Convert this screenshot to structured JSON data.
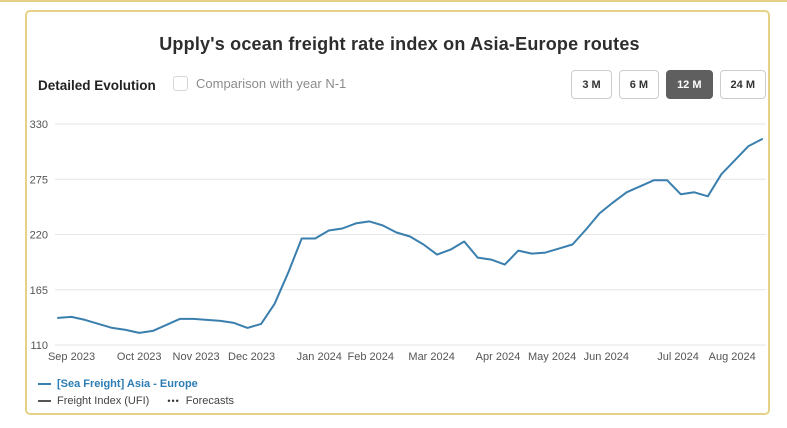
{
  "page": {
    "title": "Upply's ocean freight rate index on Asia-Europe routes"
  },
  "toolbar": {
    "section_label": "Detailed Evolution",
    "comparison_checkbox_label": "Comparison with year N-1",
    "comparison_checked": false,
    "range_buttons": [
      {
        "label": "3 M",
        "active": false
      },
      {
        "label": "6 M",
        "active": false
      },
      {
        "label": "12 M",
        "active": true
      },
      {
        "label": "24 M",
        "active": false
      }
    ]
  },
  "legend": {
    "series_label": "[Sea Freight] Asia - Europe",
    "index_label": "Freight Index (UFI)",
    "forecast_marker": "•••",
    "forecast_label": "Forecasts"
  },
  "colors": {
    "series_line": "#3a7fae",
    "legend_series_text": "#2d7cb3",
    "card_border": "#e5d287",
    "active_button_bg": "#5f5f5f",
    "grid_line": "#e6e6e6",
    "axis_text": "#555555"
  },
  "chart_data": {
    "type": "line",
    "title": "Upply's ocean freight rate index on Asia-Europe routes",
    "xlabel": "",
    "ylabel": "",
    "grid": "horizontal",
    "legend_position": "bottom-left",
    "ylim": [
      110,
      330
    ],
    "y_ticks": [
      110,
      165,
      220,
      275,
      330
    ],
    "x_tick_labels": [
      "Sep 2023",
      "Oct 2023",
      "Nov 2023",
      "Dec 2023",
      "Jan 2024",
      "Feb 2024",
      "Mar 2024",
      "Apr 2024",
      "May 2024",
      "Jun 2024",
      "Jul 2024",
      "Aug 2024"
    ],
    "x_tick_indices": [
      1,
      6,
      10.2,
      14.3,
      19.3,
      23.1,
      27.6,
      32.5,
      36.5,
      40.5,
      45.8,
      49.8
    ],
    "sampling": "weekly points, Sep 2023 – Aug 2024",
    "series": [
      {
        "name": "[Sea Freight] Asia - Europe",
        "values": [
          137,
          138,
          135,
          131,
          127,
          125,
          122,
          124,
          130,
          136,
          136,
          135,
          134,
          132,
          127,
          131,
          151,
          182,
          216,
          216,
          224,
          226,
          231,
          233,
          229,
          222,
          218,
          210,
          200,
          205,
          213,
          197,
          195,
          190,
          204,
          201,
          202,
          206,
          210,
          225,
          241,
          252,
          262,
          268,
          274,
          274,
          260,
          262,
          258,
          280,
          294,
          308,
          315
        ]
      }
    ]
  }
}
